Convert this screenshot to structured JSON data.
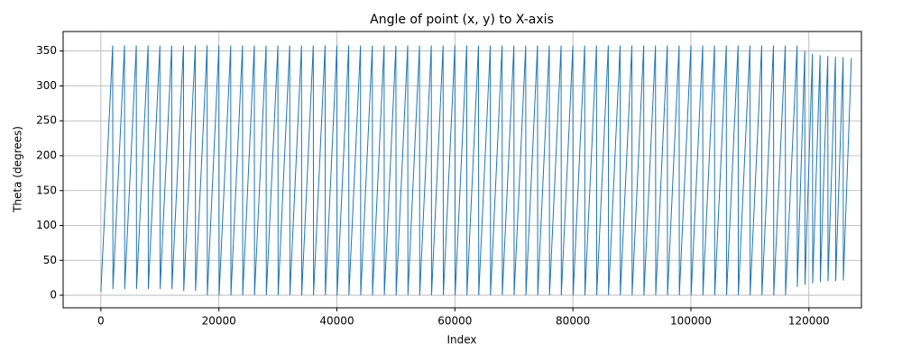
{
  "chart_data": {
    "type": "line",
    "title": "Angle of point (x, y) to X-axis",
    "xlabel": "Index",
    "ylabel": "Theta (degrees)",
    "x": [
      0,
      2000,
      2040,
      4000,
      4040,
      6000,
      6040,
      8000,
      8040,
      10000,
      10040,
      12000,
      12040,
      14000,
      14040,
      16000,
      16040,
      18000,
      18040,
      20000,
      20040,
      22000,
      22040,
      24000,
      24040,
      26000,
      26040,
      28000,
      28040,
      30000,
      30040,
      32000,
      32040,
      34000,
      34040,
      36000,
      36040,
      38000,
      38040,
      40000,
      40040,
      42000,
      42040,
      44000,
      44040,
      46000,
      46040,
      48000,
      48040,
      50000,
      50040,
      52000,
      52040,
      54000,
      54040,
      56000,
      56040,
      58000,
      58040,
      60000,
      60040,
      62000,
      62040,
      64000,
      64040,
      66000,
      66040,
      68000,
      68040,
      70000,
      70040,
      72000,
      72040,
      74000,
      74040,
      76000,
      76040,
      78000,
      78040,
      80000,
      80040,
      82000,
      82040,
      84000,
      84040,
      86000,
      86040,
      88000,
      88040,
      90000,
      90040,
      92000,
      92040,
      94000,
      94040,
      96000,
      96040,
      98000,
      98040,
      100000,
      100040,
      102000,
      102040,
      104000,
      104040,
      106000,
      106040,
      108000,
      108040,
      110000,
      110040,
      112000,
      112040,
      114000,
      114040,
      116000,
      116040,
      118000,
      118040,
      119300,
      119340,
      120600,
      120640,
      121900,
      121940,
      123200,
      123240,
      124500,
      124540,
      125800,
      125840,
      127200
    ],
    "series": [
      {
        "name": "Theta",
        "color": "#1f77b4",
        "values": [
          5,
          358,
          9,
          358,
          9,
          358,
          9,
          358,
          9,
          358,
          9,
          358,
          9,
          358,
          6,
          358,
          6,
          358,
          0,
          358,
          0,
          358,
          0,
          358,
          0,
          358,
          0,
          358,
          0,
          358,
          0,
          358,
          0,
          358,
          0,
          358,
          0,
          358,
          0,
          358,
          0,
          358,
          0,
          358,
          0,
          358,
          0,
          358,
          0,
          358,
          0,
          358,
          0,
          358,
          0,
          358,
          0,
          358,
          0,
          358,
          0,
          358,
          0,
          358,
          0,
          358,
          0,
          358,
          0,
          358,
          0,
          358,
          0,
          358,
          0,
          358,
          0,
          358,
          0,
          358,
          0,
          358,
          0,
          358,
          0,
          358,
          0,
          358,
          0,
          358,
          0,
          358,
          0,
          358,
          0,
          358,
          0,
          358,
          0,
          358,
          0,
          358,
          0,
          358,
          0,
          358,
          0,
          358,
          0,
          358,
          0,
          358,
          0,
          358,
          0,
          358,
          0,
          358,
          12,
          350,
          15,
          346,
          17,
          344,
          19,
          343,
          20,
          342,
          20,
          341,
          21,
          340
        ]
      }
    ],
    "xlim": [
      -6400,
      128900
    ],
    "ylim": [
      -18,
      378
    ],
    "xticks": [
      0,
      20000,
      40000,
      60000,
      80000,
      100000,
      120000
    ],
    "yticks": [
      0,
      50,
      100,
      150,
      200,
      250,
      300,
      350
    ],
    "grid": true
  }
}
